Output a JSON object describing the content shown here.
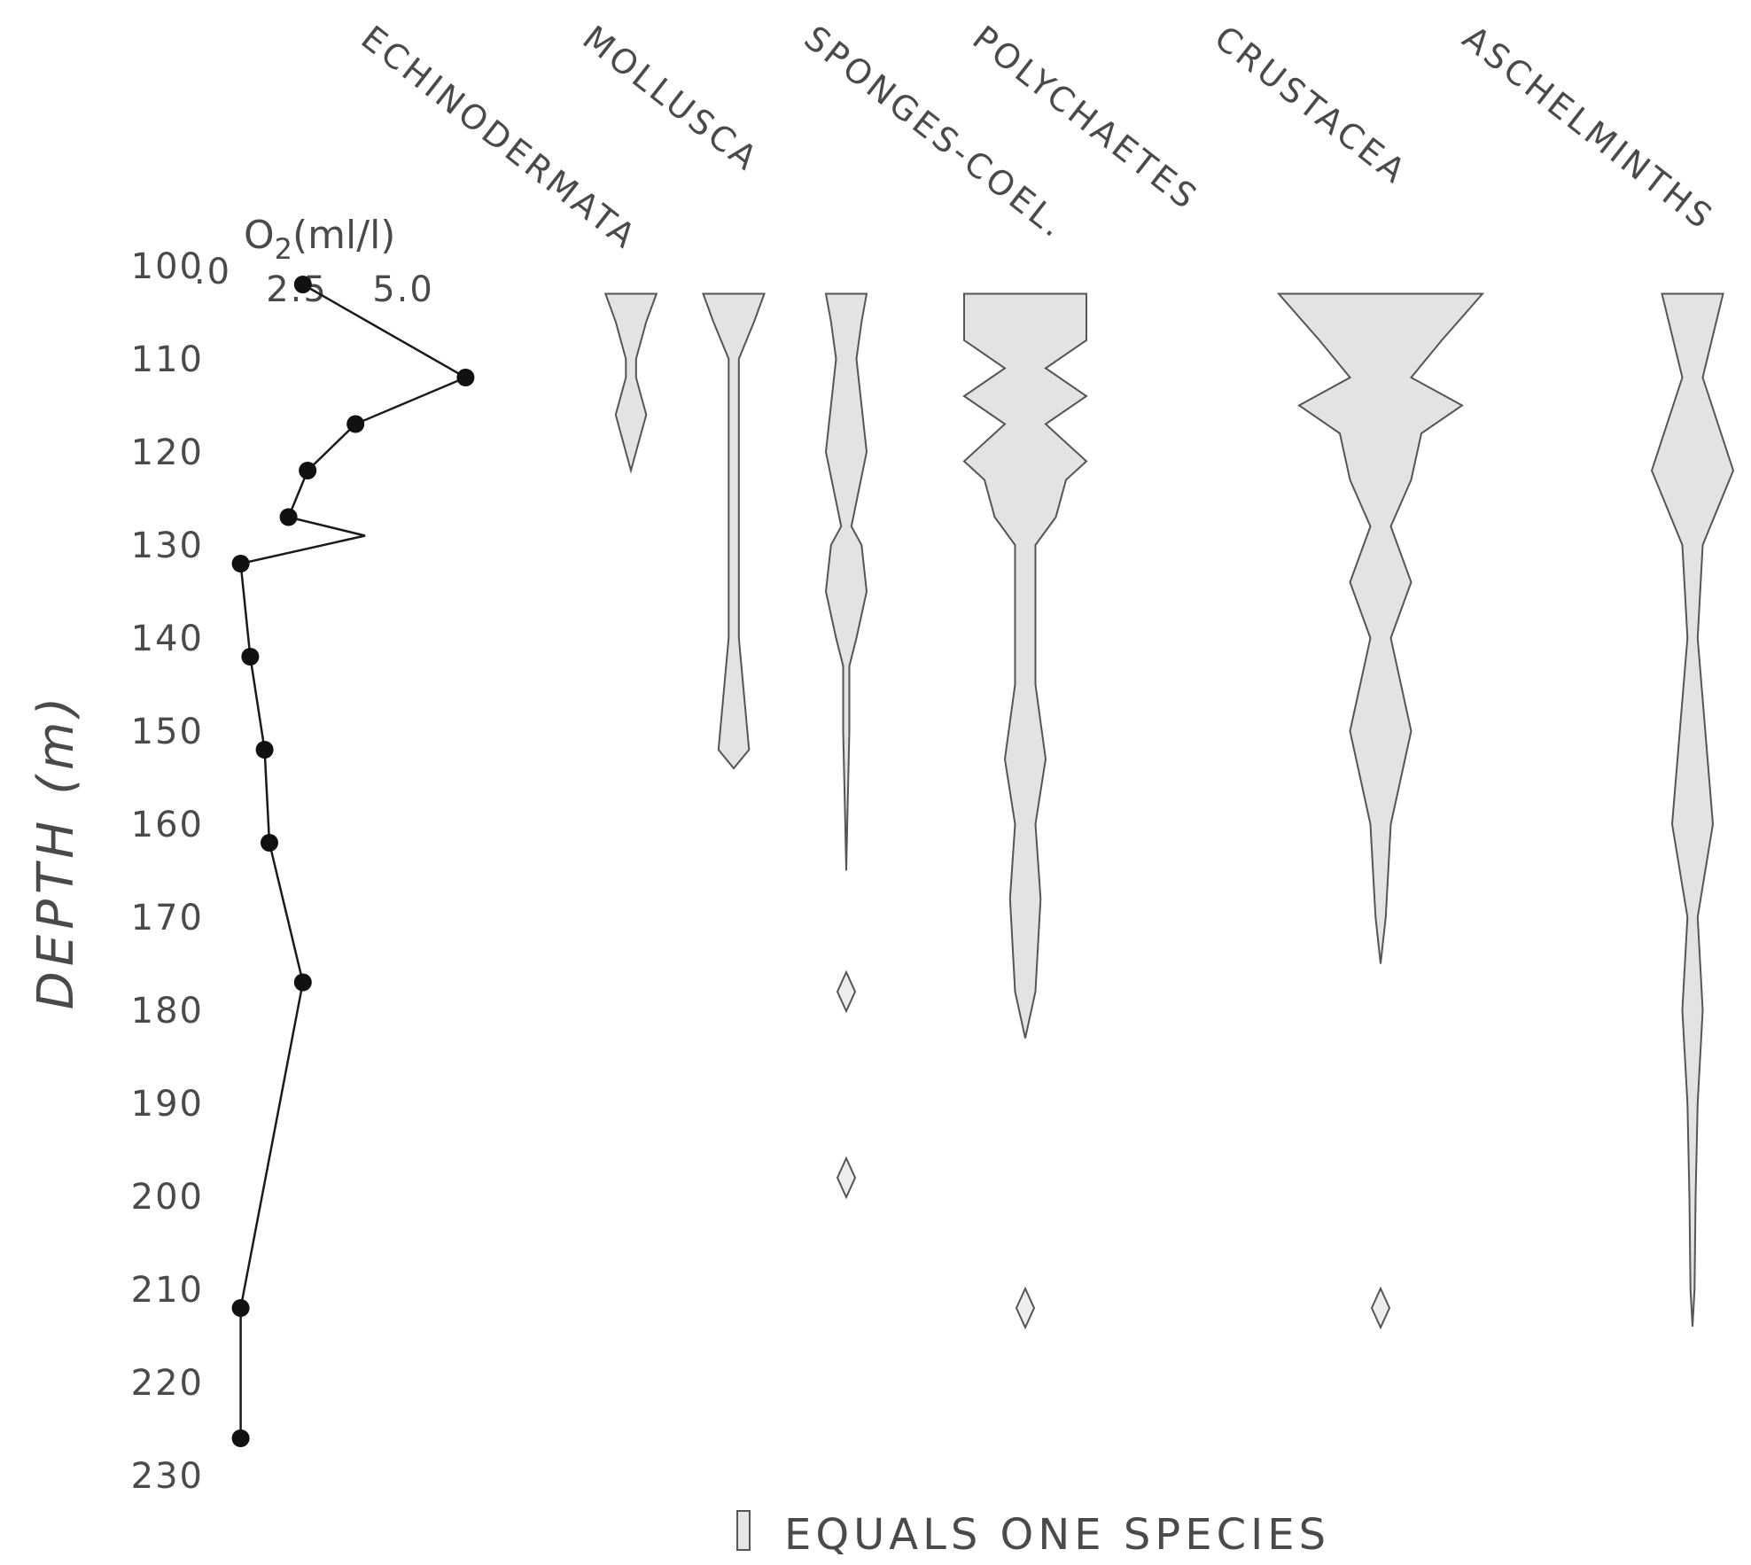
{
  "chart_data": [
    {
      "type": "line",
      "title": "O2(ml/l)",
      "xlabel": "O2(ml/l)",
      "ylabel": "DEPTH (m)",
      "x_tick_labels": [
        ".0",
        "2.5",
        "5.0"
      ],
      "xlim": [
        0,
        5
      ],
      "ylim": [
        100,
        230
      ],
      "y_ticks": [
        100,
        110,
        120,
        130,
        140,
        150,
        160,
        170,
        180,
        190,
        200,
        210,
        220,
        230
      ],
      "grid": false,
      "series": [
        {
          "points": [
            {
              "x": 1.7,
              "y": 102
            },
            {
              "x": 5.1,
              "y": 112
            },
            {
              "x": 2.8,
              "y": 117
            },
            {
              "x": 1.8,
              "y": 122
            },
            {
              "x": 1.4,
              "y": 127
            },
            {
              "x": 3.0,
              "y": 129
            },
            {
              "x": 0.4,
              "y": 132
            },
            {
              "x": 0.6,
              "y": 142
            },
            {
              "x": 0.9,
              "y": 152
            },
            {
              "x": 1.0,
              "y": 162
            },
            {
              "x": 1.7,
              "y": 177
            },
            {
              "x": 0.4,
              "y": 212
            },
            {
              "x": 0.4,
              "y": 226
            }
          ],
          "markers": [
            102,
            112,
            117,
            122,
            127,
            132,
            142,
            152,
            162,
            177,
            212,
            226
          ]
        }
      ]
    },
    {
      "type": "area",
      "subtype": "kite-diagram (species count by depth, width = number of species)",
      "unit_label": "EQUALS ONE SPECIES",
      "groups": [
        {
          "name": "ECHINODERMATA",
          "profile": [
            [
              103,
              2.5
            ],
            [
              106,
              1.5
            ],
            [
              110,
              0.5
            ],
            [
              112,
              0.5
            ],
            [
              116,
              1.5
            ],
            [
              118,
              1
            ],
            [
              122,
              0
            ]
          ]
        },
        {
          "name": "MOLLUSCA",
          "profile": [
            [
              103,
              3
            ],
            [
              106,
              2
            ],
            [
              110,
              0.5
            ],
            [
              140,
              0.5
            ],
            [
              152,
              1.5
            ],
            [
              154,
              0
            ]
          ]
        },
        {
          "name": "SPONGES-COEL.",
          "profile": [
            [
              103,
              2
            ],
            [
              106,
              1.5
            ],
            [
              110,
              1
            ],
            [
              120,
              2
            ],
            [
              128,
              0.5
            ],
            [
              130,
              1.5
            ],
            [
              135,
              2
            ],
            [
              140,
              1
            ],
            [
              143,
              0.3
            ],
            [
              150,
              0.3
            ],
            [
              160,
              0.1
            ],
            [
              165,
              0
            ]
          ],
          "isolated": [
            178,
            198
          ]
        },
        {
          "name": "POLYCHAETES",
          "profile": [
            [
              103,
              6
            ],
            [
              108,
              6
            ],
            [
              111,
              2
            ],
            [
              114,
              6
            ],
            [
              117,
              2
            ],
            [
              121,
              6
            ],
            [
              123,
              4
            ],
            [
              127,
              3
            ],
            [
              130,
              1
            ],
            [
              145,
              1
            ],
            [
              153,
              2
            ],
            [
              160,
              1
            ],
            [
              168,
              1.5
            ],
            [
              178,
              1
            ],
            [
              183,
              0
            ]
          ],
          "isolated": [
            212
          ]
        },
        {
          "name": "CRUSTACEA",
          "profile": [
            [
              103,
              10
            ],
            [
              108,
              6
            ],
            [
              112,
              3
            ],
            [
              115,
              8
            ],
            [
              118,
              4
            ],
            [
              123,
              3
            ],
            [
              128,
              1
            ],
            [
              134,
              3
            ],
            [
              140,
              1
            ],
            [
              150,
              3
            ],
            [
              160,
              1
            ],
            [
              170,
              0.5
            ],
            [
              175,
              0
            ]
          ],
          "isolated": [
            212
          ]
        },
        {
          "name": "ASCHELMINTHS",
          "profile": [
            [
              103,
              3
            ],
            [
              112,
              1
            ],
            [
              122,
              4
            ],
            [
              130,
              1
            ],
            [
              140,
              0.5
            ],
            [
              160,
              2
            ],
            [
              170,
              0.5
            ],
            [
              180,
              1
            ],
            [
              190,
              0.5
            ],
            [
              200,
              0.3
            ],
            [
              210,
              0.2
            ],
            [
              214,
              0
            ]
          ]
        }
      ]
    }
  ]
}
